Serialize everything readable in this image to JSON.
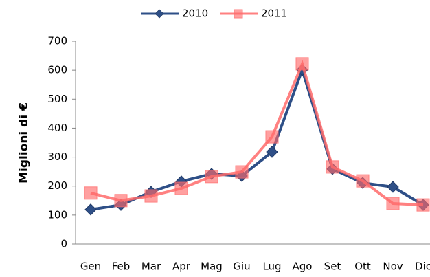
{
  "chart_data": {
    "type": "line",
    "y_label": "Miglioni di €",
    "categories": [
      "Gen",
      "Feb",
      "Mar",
      "Apr",
      "Mag",
      "Giu",
      "Lug",
      "Ago",
      "Set",
      "Ott",
      "Nov",
      "Dic"
    ],
    "series": [
      {
        "name": "2010",
        "color": "#2e4f87",
        "marker": "diamond",
        "values": [
          119,
          135,
          180,
          216,
          242,
          235,
          318,
          601,
          259,
          211,
          197,
          135
        ]
      },
      {
        "name": "2011",
        "color": "#ff6b6b",
        "marker": "square",
        "values": [
          176,
          150,
          166,
          192,
          233,
          249,
          370,
          622,
          266,
          218,
          140,
          135
        ]
      }
    ],
    "ylim": [
      0,
      700
    ],
    "yticks": [
      0,
      100,
      200,
      300,
      400,
      500,
      600,
      700
    ],
    "grid": false,
    "legend": "top"
  }
}
